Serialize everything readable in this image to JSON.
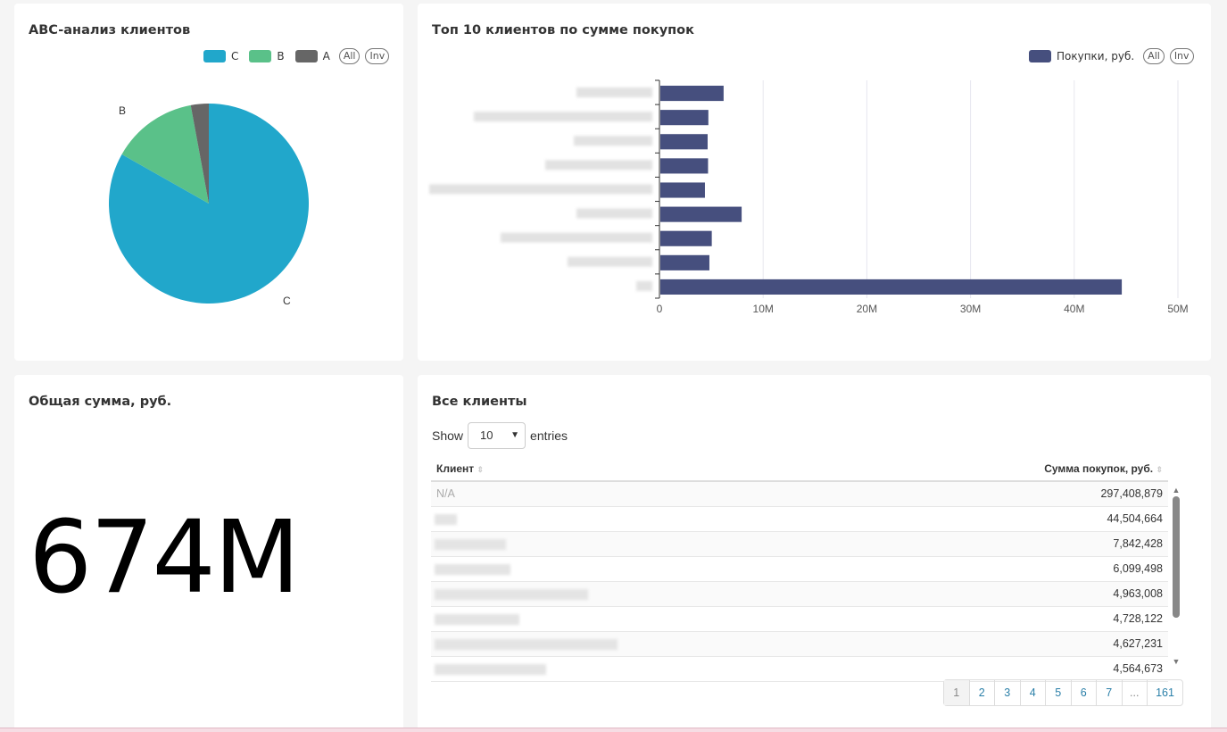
{
  "abc": {
    "title": "ABC-анализ клиентов",
    "legend": [
      {
        "label": "C",
        "color": "#21a7cb"
      },
      {
        "label": "B",
        "color": "#5ac189"
      },
      {
        "label": "A",
        "color": "#666666"
      }
    ],
    "all": "All",
    "inv": "Inv",
    "chart_data": {
      "type": "pie",
      "slices": [
        {
          "label": "C",
          "value": 83.2,
          "color": "#21a7cb"
        },
        {
          "label": "B",
          "value": 13.9,
          "color": "#5ac189"
        },
        {
          "label": "A",
          "value": 2.9,
          "color": "#666666"
        }
      ],
      "slice_labels": [
        "C",
        "B"
      ]
    }
  },
  "top": {
    "title": "Топ 10 клиентов по сумме покупок",
    "legend": "Покупки, руб.",
    "color": "#464f7e",
    "all": "All",
    "inv": "Inv",
    "chart_data": {
      "type": "bar",
      "orientation": "horizontal",
      "series": [
        {
          "name": "Покупки, руб.",
          "values": [
            6.1,
            4.63,
            4.56,
            4.6,
            4.3,
            7.84,
            4.96,
            4.73,
            44.5
          ]
        }
      ],
      "xlim": [
        0,
        50
      ],
      "xticks": [
        "0",
        "10M",
        "20M",
        "30M",
        "40M",
        "50M"
      ],
      "grid": true,
      "unit": "M"
    }
  },
  "total": {
    "title": "Общая сумма, руб.",
    "value": "674M"
  },
  "clients": {
    "title": "Все клиенты",
    "show": "Show",
    "entries": "entries",
    "page_size": "10",
    "columns": [
      "Клиент",
      "Сумма покупок, руб."
    ],
    "rows": [
      {
        "client": "N/A",
        "sum": "297,408,879"
      },
      {
        "client": "",
        "sum": "44,504,664"
      },
      {
        "client": "",
        "sum": "7,842,428"
      },
      {
        "client": "",
        "sum": "6,099,498"
      },
      {
        "client": "",
        "sum": "4,963,008"
      },
      {
        "client": "",
        "sum": "4,728,122"
      },
      {
        "client": "",
        "sum": "4,627,231"
      },
      {
        "client": "",
        "sum": "4,564,673"
      }
    ],
    "pages": [
      "1",
      "2",
      "3",
      "4",
      "5",
      "6",
      "7",
      "...",
      "161"
    ]
  }
}
